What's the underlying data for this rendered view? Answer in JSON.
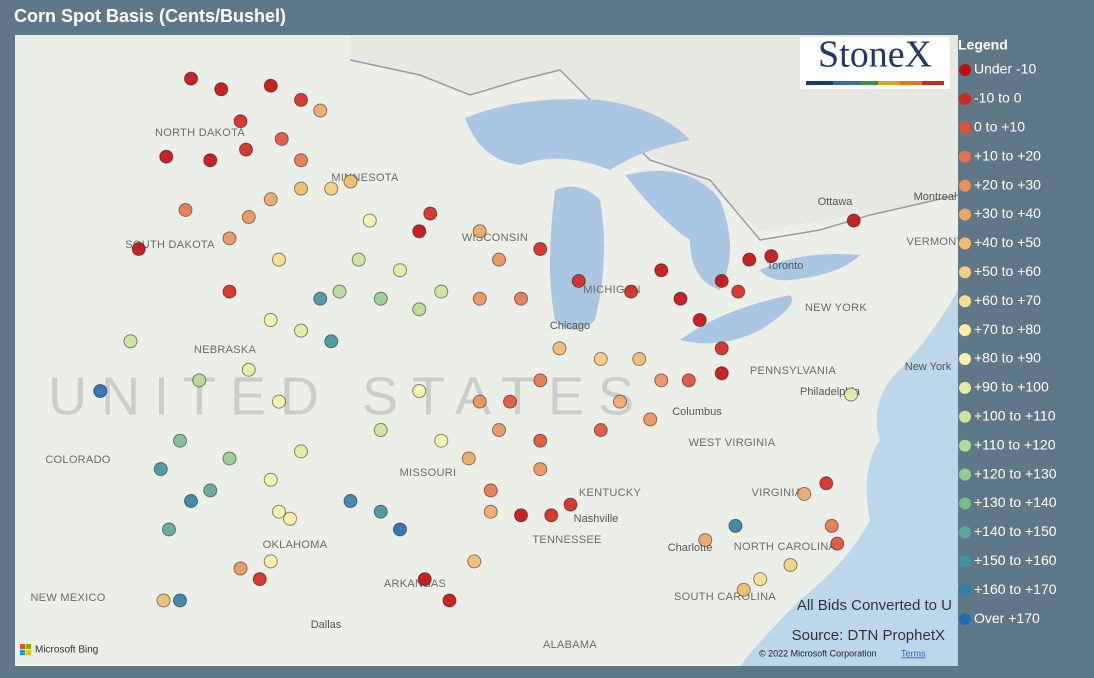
{
  "header": {
    "title": "Corn Spot Basis (Cents/Bushel)",
    "logo": "StoneX"
  },
  "legend": {
    "title": "Legend",
    "entries": [
      {
        "label": "Under -10",
        "color": "#c40c0c"
      },
      {
        "label": "-10 to 0",
        "color": "#d4261c"
      },
      {
        "label": "0 to +10",
        "color": "#df4f33"
      },
      {
        "label": "+10 to +20",
        "color": "#e8734a"
      },
      {
        "label": "+20 to +30",
        "color": "#ee9055"
      },
      {
        "label": "+30 to +40",
        "color": "#f2a560"
      },
      {
        "label": "+40 to +50",
        "color": "#f5ba6b"
      },
      {
        "label": "+50 to +60",
        "color": "#f8cc7a"
      },
      {
        "label": "+60 to +70",
        "color": "#fadf8c"
      },
      {
        "label": "+70 to +80",
        "color": "#fcee9f"
      },
      {
        "label": "+80 to +90",
        "color": "#f4f3a8"
      },
      {
        "label": "+90 to +100",
        "color": "#e2eda2"
      },
      {
        "label": "+100 to +110",
        "color": "#cce49a"
      },
      {
        "label": "+110 to +120",
        "color": "#b2da93"
      },
      {
        "label": "+120 to +130",
        "color": "#95cc8f"
      },
      {
        "label": "+130 to +140",
        "color": "#77bc8f"
      },
      {
        "label": "+140 to +150",
        "color": "#59a996"
      },
      {
        "label": "+150 to +160",
        "color": "#3e95a0"
      },
      {
        "label": "+160 to +170",
        "color": "#2d80a8"
      },
      {
        "label": "Over +170",
        "color": "#1f6db3"
      }
    ]
  },
  "map_labels": {
    "states": [
      "NORTH DAKOTA",
      "SOUTH DAKOTA",
      "MINNESOTA",
      "WISCONSIN",
      "NEBRASKA",
      "COLORADO",
      "MISSOURI",
      "KENTUCKY",
      "TENNESSEE",
      "OKLAHOMA",
      "ARKANSAS",
      "NEW MEXICO",
      "ALABAMA",
      "WEST VIRGINIA",
      "VIRGINIA",
      "NORTH CAROLINA",
      "SOUTH CAROLINA",
      "PENNSYLVANIA",
      "NEW YORK",
      "VERMONT",
      "MICHIGAN"
    ],
    "cities": [
      "Chicago",
      "Columbus",
      "Nashville",
      "Charlotte",
      "Philadelphia",
      "New York",
      "Ottawa",
      "Montreal",
      "Toronto",
      "Dallas"
    ],
    "country": "UNITED STATES"
  },
  "notes": {
    "conversion": "All Bids Converted to U",
    "source": "Source: DTN ProphetX",
    "copyright": "© 2022 Microsoft Corporation",
    "terms": "Terms",
    "bing": "Microsoft Bing"
  },
  "points": [
    [
      -101.4,
      48.8,
      0
    ],
    [
      -100.3,
      48.5,
      0
    ],
    [
      -98.5,
      48.6,
      0
    ],
    [
      -97.4,
      48.2,
      1
    ],
    [
      -99.6,
      47.6,
      1
    ],
    [
      -98.1,
      47.1,
      2
    ],
    [
      -100.7,
      46.5,
      0
    ],
    [
      -99.4,
      46.8,
      1
    ],
    [
      -102.3,
      46.6,
      0
    ],
    [
      -97.4,
      46.5,
      3
    ],
    [
      -96.7,
      47.9,
      5
    ],
    [
      -103.3,
      44.0,
      0
    ],
    [
      -101.6,
      45.1,
      3
    ],
    [
      -100.0,
      44.3,
      4
    ],
    [
      -98.5,
      45.4,
      5
    ],
    [
      -100.0,
      42.8,
      1
    ],
    [
      -98.2,
      43.7,
      8
    ],
    [
      -99.3,
      44.9,
      4
    ],
    [
      -96.3,
      45.7,
      7
    ],
    [
      -94.9,
      44.8,
      10
    ],
    [
      -95.6,
      45.9,
      6
    ],
    [
      -97.4,
      45.7,
      6
    ],
    [
      -96.0,
      42.8,
      13
    ],
    [
      -94.5,
      42.6,
      14
    ],
    [
      -93.1,
      42.3,
      13
    ],
    [
      -96.7,
      42.6,
      17
    ],
    [
      -96.3,
      41.4,
      17
    ],
    [
      -95.3,
      43.7,
      12
    ],
    [
      -93.8,
      43.4,
      11
    ],
    [
      -92.3,
      42.8,
      12
    ],
    [
      -97.4,
      41.7,
      11
    ],
    [
      -98.5,
      42.0,
      10
    ],
    [
      -99.3,
      40.6,
      11
    ],
    [
      -98.2,
      39.7,
      10
    ],
    [
      -97.4,
      38.3,
      11
    ],
    [
      -97.8,
      36.4,
      9
    ],
    [
      -98.5,
      37.5,
      10
    ],
    [
      -101.1,
      40.3,
      13
    ],
    [
      -101.8,
      38.6,
      15
    ],
    [
      -102.5,
      37.8,
      17
    ],
    [
      -101.4,
      36.9,
      18
    ],
    [
      -104.7,
      40.0,
      19
    ],
    [
      -103.6,
      41.4,
      12
    ],
    [
      -100.0,
      38.1,
      14
    ],
    [
      -100.7,
      37.2,
      16
    ],
    [
      -102.2,
      36.1,
      16
    ],
    [
      -102.4,
      34.1,
      6
    ],
    [
      -101.8,
      34.1,
      18
    ],
    [
      -95.6,
      36.9,
      18
    ],
    [
      -94.5,
      36.6,
      17
    ],
    [
      -93.8,
      36.1,
      19
    ],
    [
      -93.1,
      40.0,
      10
    ],
    [
      -94.5,
      38.9,
      12
    ],
    [
      -92.3,
      38.6,
      10
    ],
    [
      -90.9,
      39.7,
      4
    ],
    [
      -89.8,
      39.7,
      2
    ],
    [
      -88.7,
      40.3,
      3
    ],
    [
      -90.2,
      38.9,
      4
    ],
    [
      -91.3,
      38.1,
      5
    ],
    [
      -88.7,
      38.6,
      2
    ],
    [
      -88.0,
      41.2,
      6
    ],
    [
      -86.5,
      40.9,
      7
    ],
    [
      -85.1,
      40.9,
      6
    ],
    [
      -85.8,
      39.7,
      5
    ],
    [
      -84.3,
      40.3,
      4
    ],
    [
      -83.3,
      40.3,
      2
    ],
    [
      -86.5,
      38.9,
      2
    ],
    [
      -84.7,
      39.2,
      4
    ],
    [
      -92.7,
      45.0,
      1
    ],
    [
      -93.1,
      44.5,
      0
    ],
    [
      -90.9,
      44.5,
      5
    ],
    [
      -90.2,
      43.7,
      4
    ],
    [
      -89.4,
      42.6,
      3
    ],
    [
      -88.7,
      44.0,
      1
    ],
    [
      -90.9,
      42.6,
      4
    ],
    [
      -84.3,
      43.4,
      0
    ],
    [
      -83.6,
      42.6,
      0
    ],
    [
      -82.9,
      42.0,
      0
    ],
    [
      -82.1,
      43.1,
      0
    ],
    [
      -81.1,
      43.7,
      0
    ],
    [
      -81.5,
      42.8,
      1
    ],
    [
      -85.4,
      42.8,
      1
    ],
    [
      -87.3,
      43.1,
      1
    ],
    [
      -82.1,
      41.2,
      1
    ],
    [
      -82.1,
      40.5,
      0
    ],
    [
      -77.3,
      44.8,
      0
    ],
    [
      -80.3,
      43.8,
      0
    ],
    [
      -90.5,
      37.2,
      3
    ],
    [
      -89.4,
      36.5,
      0
    ],
    [
      -88.3,
      36.5,
      1
    ],
    [
      -90.5,
      36.6,
      5
    ],
    [
      -92.0,
      34.1,
      0
    ],
    [
      -92.9,
      34.7,
      0
    ],
    [
      -87.6,
      36.8,
      1
    ],
    [
      -88.7,
      37.8,
      4
    ],
    [
      -91.1,
      35.2,
      6
    ],
    [
      -98.2,
      36.6,
      10
    ],
    [
      -98.9,
      34.7,
      1
    ],
    [
      -99.6,
      35.0,
      4
    ],
    [
      -98.5,
      35.2,
      9
    ],
    [
      -78.3,
      37.4,
      1
    ],
    [
      -79.1,
      37.1,
      5
    ],
    [
      -78.1,
      36.2,
      3
    ],
    [
      -77.9,
      35.7,
      2
    ],
    [
      -79.6,
      35.1,
      7
    ],
    [
      -80.7,
      34.7,
      8
    ],
    [
      -81.3,
      34.4,
      6
    ],
    [
      -81.6,
      36.2,
      18
    ],
    [
      -82.7,
      35.8,
      5
    ],
    [
      -77.4,
      39.9,
      11
    ]
  ]
}
